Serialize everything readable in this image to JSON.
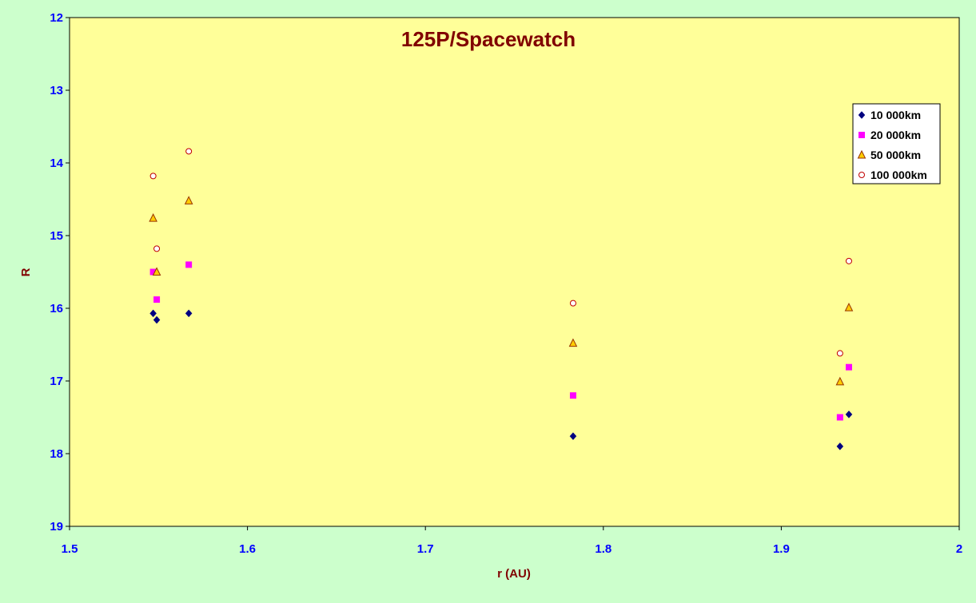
{
  "chart_data": {
    "type": "scatter",
    "title": "125P/Spacewatch",
    "xlabel": "r (AU)",
    "ylabel": "R",
    "xlim": [
      1.5,
      2.0
    ],
    "ylim": [
      12,
      19
    ],
    "y_inverted": true,
    "x_ticks": [
      "1.5",
      "1.6",
      "1.7",
      "1.8",
      "1.9",
      "2"
    ],
    "y_ticks": [
      "12",
      "13",
      "14",
      "15",
      "16",
      "17",
      "18",
      "19"
    ],
    "grid": false,
    "legend_position": "top-right",
    "series": [
      {
        "name": "10 000km",
        "marker": "diamond",
        "color": "#000080",
        "points": [
          [
            1.547,
            16.07
          ],
          [
            1.549,
            16.16
          ],
          [
            1.567,
            16.07
          ],
          [
            1.783,
            17.76
          ],
          [
            1.933,
            17.9
          ],
          [
            1.938,
            17.46
          ]
        ]
      },
      {
        "name": "20 000km",
        "marker": "square",
        "color": "#ff00ff",
        "points": [
          [
            1.547,
            15.5
          ],
          [
            1.549,
            15.88
          ],
          [
            1.567,
            15.4
          ],
          [
            1.783,
            17.2
          ],
          [
            1.933,
            17.5
          ],
          [
            1.938,
            16.81
          ]
        ]
      },
      {
        "name": "50 000km",
        "marker": "triangle",
        "color": "#ffcc00",
        "points": [
          [
            1.547,
            14.76
          ],
          [
            1.549,
            15.5
          ],
          [
            1.567,
            14.52
          ],
          [
            1.783,
            16.48
          ],
          [
            1.933,
            17.01
          ],
          [
            1.938,
            15.99
          ]
        ]
      },
      {
        "name": "100 000km",
        "marker": "circle",
        "color": "#ffffff",
        "points": [
          [
            1.547,
            14.18
          ],
          [
            1.549,
            15.18
          ],
          [
            1.567,
            13.84
          ],
          [
            1.783,
            15.93
          ],
          [
            1.933,
            16.62
          ],
          [
            1.938,
            15.35
          ]
        ]
      }
    ]
  },
  "colors": {
    "background": "#ccffcc",
    "plot_area": "#ffff99",
    "title": "#800000",
    "axis_label": "#800000",
    "tick_label": "#0000ff"
  }
}
